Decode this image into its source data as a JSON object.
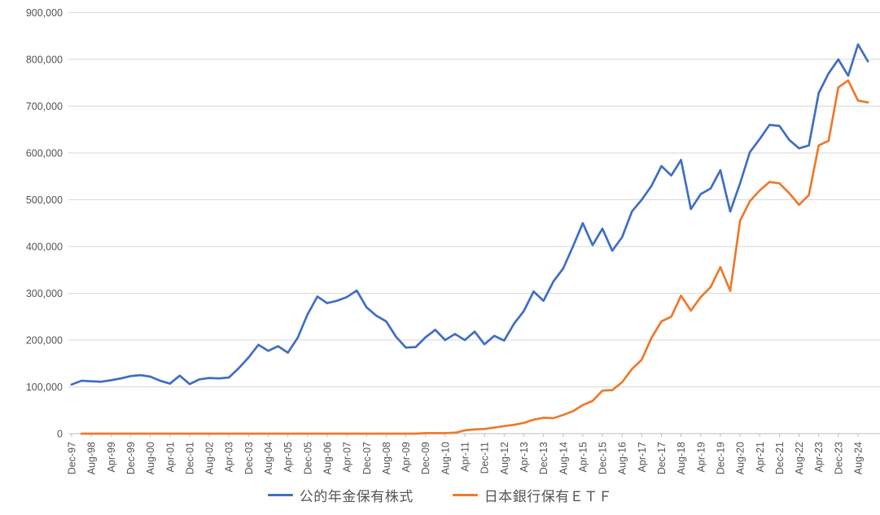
{
  "chart_data": {
    "type": "line",
    "title": "",
    "xlabel": "",
    "ylabel": "",
    "grid": "horizontal",
    "legend_position": "bottom",
    "ylim": [
      0,
      900000
    ],
    "y_tick_step": 100000,
    "y_tick_labels": [
      "0",
      "100,000",
      "200,000",
      "300,000",
      "400,000",
      "500,000",
      "600,000",
      "700,000",
      "800,000",
      "900,000"
    ],
    "x_tick_labels": [
      "Dec-97",
      "Aug-98",
      "Apr-99",
      "Dec-99",
      "Aug-00",
      "Apr-01",
      "Dec-01",
      "Aug-02",
      "Apr-03",
      "Dec-03",
      "Aug-04",
      "Apr-05",
      "Dec-05",
      "Aug-06",
      "Apr-07",
      "Dec-07",
      "Aug-08",
      "Apr-09",
      "Dec-09",
      "Aug-10",
      "Apr-11",
      "Dec-11",
      "Aug-12",
      "Apr-13",
      "Dec-13",
      "Aug-14",
      "Apr-15",
      "Dec-15",
      "Aug-16",
      "Apr-17",
      "Dec-17",
      "Aug-18",
      "Apr-19",
      "Dec-19",
      "Aug-20",
      "Apr-21",
      "Dec-21",
      "Aug-22",
      "Apr-23",
      "Dec-23",
      "Aug-24"
    ],
    "categories": [
      "Dec-97",
      "Apr-98",
      "Aug-98",
      "Dec-98",
      "Apr-99",
      "Aug-99",
      "Dec-99",
      "Apr-00",
      "Aug-00",
      "Dec-00",
      "Apr-01",
      "Aug-01",
      "Dec-01",
      "Apr-02",
      "Aug-02",
      "Dec-02",
      "Apr-03",
      "Aug-03",
      "Dec-03",
      "Apr-04",
      "Aug-04",
      "Dec-04",
      "Apr-05",
      "Aug-05",
      "Dec-05",
      "Apr-06",
      "Aug-06",
      "Dec-06",
      "Apr-07",
      "Aug-07",
      "Dec-07",
      "Apr-08",
      "Aug-08",
      "Dec-08",
      "Apr-09",
      "Aug-09",
      "Dec-09",
      "Apr-10",
      "Aug-10",
      "Dec-10",
      "Apr-11",
      "Aug-11",
      "Dec-11",
      "Apr-12",
      "Aug-12",
      "Dec-12",
      "Apr-13",
      "Aug-13",
      "Dec-13",
      "Apr-14",
      "Aug-14",
      "Dec-14",
      "Apr-15",
      "Aug-15",
      "Dec-15",
      "Apr-16",
      "Aug-16",
      "Dec-16",
      "Apr-17",
      "Aug-17",
      "Dec-17",
      "Apr-18",
      "Aug-18",
      "Dec-18",
      "Apr-19",
      "Aug-19",
      "Dec-19",
      "Apr-20",
      "Aug-20",
      "Dec-20",
      "Apr-21",
      "Aug-21",
      "Dec-21",
      "Apr-22",
      "Aug-22",
      "Dec-22",
      "Apr-23",
      "Aug-23",
      "Dec-23",
      "Apr-24",
      "Aug-24",
      "Dec-24"
    ],
    "series": [
      {
        "name": "公的年金保有株式",
        "color": "#4472C4",
        "values": [
          105000,
          113000,
          112000,
          111000,
          114000,
          118000,
          123000,
          125000,
          122000,
          113000,
          107000,
          124000,
          106000,
          116000,
          119000,
          118000,
          120000,
          140000,
          163000,
          190000,
          177000,
          187000,
          173000,
          205000,
          255000,
          293000,
          279000,
          284000,
          292000,
          306000,
          270000,
          252000,
          240000,
          207000,
          184000,
          185000,
          206000,
          222000,
          200000,
          213000,
          200000,
          218000,
          191000,
          209000,
          199000,
          235000,
          262000,
          304000,
          284000,
          325000,
          353000,
          400000,
          450000,
          403000,
          438000,
          391000,
          420000,
          475000,
          500000,
          530000,
          572000,
          552000,
          585000,
          480000,
          512000,
          524000,
          563000,
          475000,
          535000,
          602000,
          630000,
          660000,
          658000,
          628000,
          610000,
          616000,
          728000,
          770000,
          800000,
          765000,
          832000,
          796000
        ]
      },
      {
        "name": "日本銀行保有ＥＴＦ",
        "color": "#ED7D31",
        "values": [
          null,
          0,
          0,
          0,
          0,
          0,
          0,
          0,
          0,
          0,
          0,
          0,
          0,
          0,
          0,
          0,
          0,
          0,
          0,
          0,
          0,
          0,
          0,
          0,
          0,
          0,
          0,
          0,
          0,
          0,
          0,
          0,
          0,
          0,
          0,
          0,
          1000,
          1000,
          1000,
          2000,
          7000,
          9000,
          10000,
          13000,
          16000,
          19000,
          23000,
          30000,
          34000,
          33000,
          40000,
          48000,
          61000,
          70000,
          92000,
          93000,
          110000,
          138000,
          158000,
          205000,
          240000,
          250000,
          295000,
          263000,
          292000,
          313000,
          356000,
          305000,
          455000,
          497000,
          520000,
          538000,
          535000,
          514000,
          489000,
          510000,
          616000,
          626000,
          740000,
          755000,
          712000,
          708000
        ]
      }
    ]
  },
  "colors": {
    "gridline": "#d9d9d9",
    "axis_line": "#bfbfbf",
    "tick_label": "#595959",
    "background": "#ffffff"
  }
}
